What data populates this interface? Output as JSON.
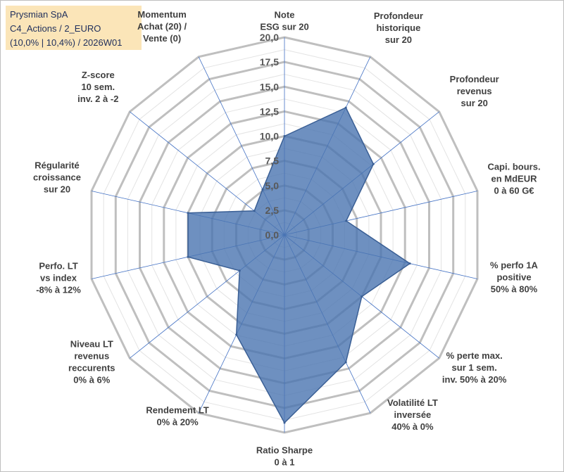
{
  "title_box": {
    "line1": "Prysmian SpA",
    "line2": "C4_Actions / 2_EURO",
    "line3": "(10,0% | 10,4%) / 2026W01"
  },
  "chart_data": {
    "type": "radar",
    "title": "Prysmian SpA",
    "rlim": [
      0,
      20
    ],
    "ticks": [
      "0,0",
      "2,5",
      "5,0",
      "7,5",
      "10,0",
      "12,5",
      "15,0",
      "17,5",
      "20,0"
    ],
    "tick_values": [
      0,
      2.5,
      5,
      7.5,
      10,
      12.5,
      15,
      17.5,
      20
    ],
    "categories": [
      [
        "Note",
        "ESG sur 20"
      ],
      [
        "Profondeur",
        "historique",
        "sur 20"
      ],
      [
        "Profondeur",
        "revenus",
        "sur 20"
      ],
      [
        "Capi. bours.",
        "en MdEUR",
        "0 à 60 G€"
      ],
      [
        "% perfo 1A",
        "positive",
        "50% à 80%"
      ],
      [
        "% perte max.",
        "sur 1 sem.",
        "inv. 50% à 20%"
      ],
      [
        "Volatilité LT",
        "inversée",
        "40% à 0%"
      ],
      [
        "Ratio Sharpe",
        "0 à 1"
      ],
      [
        "Rendement LT",
        "0% à 20%"
      ],
      [
        "Niveau LT",
        "revenus",
        "reccurents",
        "0% à 6%"
      ],
      [
        "Perfo. LT",
        "vs index",
        "-8% à 12%"
      ],
      [
        "Régularité",
        "croissance",
        "sur 20"
      ],
      [
        "Z-score",
        "10 sem.",
        "inv. 2 à -2"
      ],
      [
        "Momentum",
        "Achat (20) /",
        "Vente (0)"
      ]
    ],
    "series": [
      {
        "name": "Prysmian SpA",
        "values": [
          10,
          14.3,
          11.5,
          6.4,
          13.0,
          10.0,
          14.3,
          19.0,
          11.2,
          5.8,
          10.0,
          10.0,
          3.9,
          5.1
        ],
        "color": "#4a74b0"
      }
    ],
    "grid_color": "#bfbfbf",
    "axis_color": "#4472c4",
    "legend": "none"
  }
}
